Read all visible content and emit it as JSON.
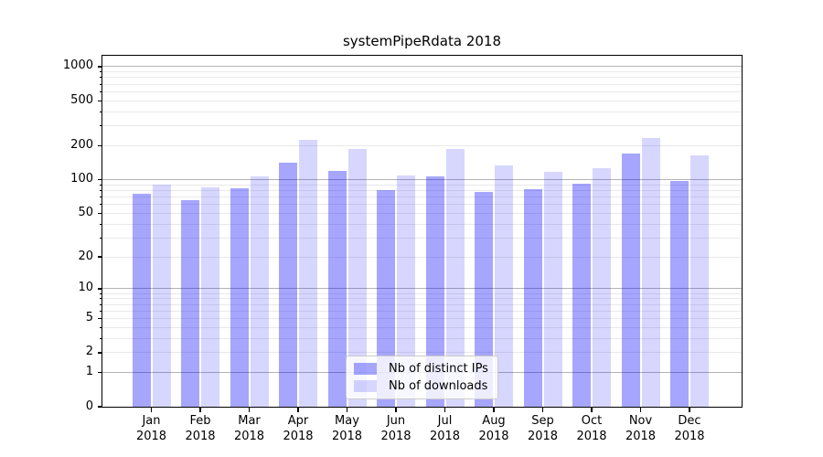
{
  "chart_data": {
    "type": "bar",
    "title": "systemPipeRdata 2018",
    "categories": [
      "Jan",
      "Feb",
      "Mar",
      "Apr",
      "May",
      "Jun",
      "Jul",
      "Aug",
      "Sep",
      "Oct",
      "Nov",
      "Dec"
    ],
    "year_label": "2018",
    "series": [
      {
        "name": "Nb of distinct IPs",
        "color": "rgba(0,0,255,0.35)",
        "values": [
          74,
          65,
          83,
          141,
          119,
          80,
          106,
          77,
          82,
          91,
          170,
          97
        ]
      },
      {
        "name": "Nb of downloads",
        "color": "rgba(0,0,255,0.16)",
        "values": [
          90,
          85,
          107,
          225,
          186,
          108,
          188,
          134,
          118,
          127,
          234,
          164
        ]
      }
    ],
    "yscale": "log1p",
    "ylim": [
      0,
      1240
    ],
    "y_ticks": [
      0,
      1,
      2,
      5,
      10,
      20,
      50,
      100,
      200,
      500,
      1000
    ],
    "grid": {
      "decade_lines": [
        1,
        10,
        100,
        1000
      ],
      "minor_lines": [
        2,
        3,
        4,
        5,
        6,
        7,
        8,
        9,
        20,
        30,
        40,
        50,
        60,
        70,
        80,
        90,
        200,
        300,
        400,
        500,
        600,
        700,
        800,
        900
      ],
      "decade_color": "#b3b3b3",
      "minor_color": "#e9e9e9"
    },
    "legend_position": "lower center",
    "axis_color": "#000000",
    "background_color": "#ffffff"
  }
}
